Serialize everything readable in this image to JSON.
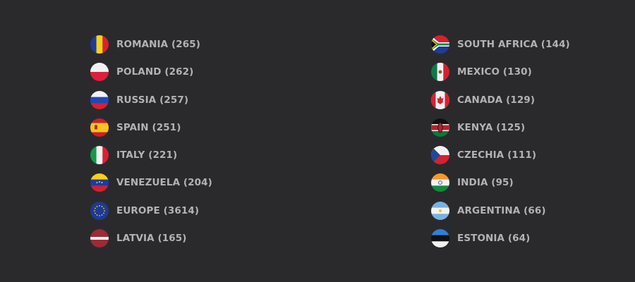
{
  "colors": {
    "background": "#2a2a2d",
    "text": "#b3b3b6"
  },
  "left_column": [
    {
      "label": "ROMANIA (265)",
      "flag": "romania"
    },
    {
      "label": "POLAND (262)",
      "flag": "poland"
    },
    {
      "label": "RUSSIA (257)",
      "flag": "russia"
    },
    {
      "label": "SPAIN (251)",
      "flag": "spain"
    },
    {
      "label": "ITALY (221)",
      "flag": "italy"
    },
    {
      "label": "VENEZUELA (204)",
      "flag": "venezuela"
    },
    {
      "label": "EUROPE (3614)",
      "flag": "europe"
    },
    {
      "label": "LATVIA (165)",
      "flag": "latvia"
    }
  ],
  "right_column": [
    {
      "label": "SOUTH AFRICA (144)",
      "flag": "south-africa"
    },
    {
      "label": "MEXICO (130)",
      "flag": "mexico"
    },
    {
      "label": "CANADA (129)",
      "flag": "canada"
    },
    {
      "label": "KENYA (125)",
      "flag": "kenya"
    },
    {
      "label": "CZECHIA (111)",
      "flag": "czechia"
    },
    {
      "label": "INDIA (95)",
      "flag": "india"
    },
    {
      "label": "ARGENTINA (66)",
      "flag": "argentina"
    },
    {
      "label": "ESTONIA (64)",
      "flag": "estonia"
    }
  ]
}
